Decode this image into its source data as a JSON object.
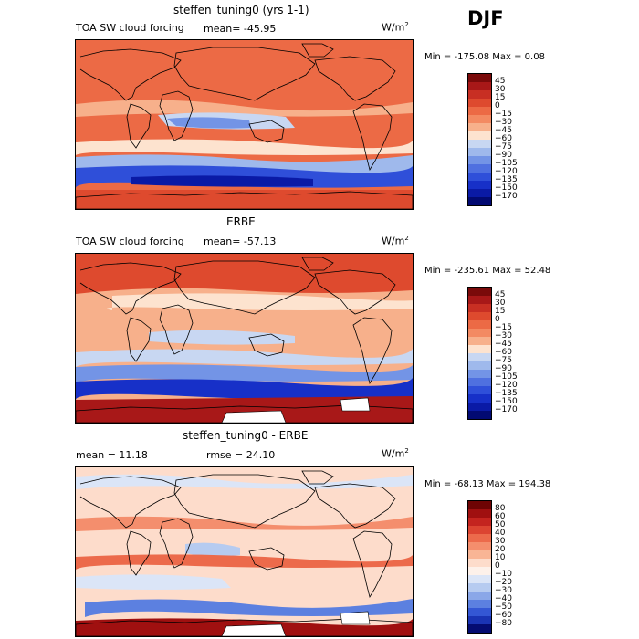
{
  "season": "DJF",
  "unit_label": "W/m",
  "unit_exp": "2",
  "panels": [
    {
      "title": "steffen_tuning0 (yrs 1-1)",
      "variable": "TOA SW cloud forcing",
      "stat_text": "mean= -45.95",
      "stat2_text": "",
      "minmax_text": "Min = -175.08 Max =    0.08",
      "colorbar_ticks": [
        "45",
        "30",
        "15",
        "0",
        "−15",
        "−30",
        "−45",
        "−60",
        "−75",
        "−90",
        "−105",
        "−120",
        "−135",
        "−150",
        "−170"
      ]
    },
    {
      "title": "ERBE",
      "variable": "TOA SW cloud forcing",
      "stat_text": "mean= -57.13",
      "stat2_text": "",
      "minmax_text": "Min = -235.61 Max =  52.48",
      "colorbar_ticks": [
        "45",
        "30",
        "15",
        "0",
        "−15",
        "−30",
        "−45",
        "−60",
        "−75",
        "−90",
        "−105",
        "−120",
        "−135",
        "−150",
        "−170"
      ]
    },
    {
      "title": "steffen_tuning0 - ERBE",
      "variable": "",
      "stat_text": "mean =   11.18",
      "stat2_text": "rmse =   24.10",
      "minmax_text": "Min = -68.13 Max = 194.38",
      "colorbar_ticks": [
        "80",
        "60",
        "50",
        "40",
        "30",
        "20",
        "10",
        "0",
        "−10",
        "−20",
        "−30",
        "−40",
        "−50",
        "−60",
        "−80"
      ]
    }
  ],
  "colors": {
    "abs_scale": [
      "#7a0a0a",
      "#a81818",
      "#c82f23",
      "#de4a2e",
      "#ec6a45",
      "#f38a62",
      "#f7b08b",
      "#fde3cf",
      "#c8d7f2",
      "#9fb9ec",
      "#7394e6",
      "#4f70e0",
      "#2f4fd9",
      "#1730c8",
      "#0a1aa6",
      "#020a72"
    ],
    "diff_scale": [
      "#6e0404",
      "#a01010",
      "#c4241f",
      "#dc4431",
      "#ec6a4b",
      "#f48e6d",
      "#f9b595",
      "#fddccb",
      "#fdf1ea",
      "#dbe5f7",
      "#b6cbf0",
      "#8aa7e8",
      "#5c80e0",
      "#3457d4",
      "#1a34b4",
      "#040c72"
    ]
  },
  "chart_data": [
    {
      "type": "heatmap",
      "title": "steffen_tuning0 (yrs 1-1)",
      "subtitle": "TOA SW cloud forcing",
      "unit": "W/m2",
      "mean": -45.95,
      "min": -175.08,
      "max": 0.08,
      "levels": [
        45,
        30,
        15,
        0,
        -15,
        -30,
        -45,
        -60,
        -75,
        -90,
        -105,
        -120,
        -135,
        -150,
        -170
      ]
    },
    {
      "type": "heatmap",
      "title": "ERBE",
      "subtitle": "TOA SW cloud forcing",
      "unit": "W/m2",
      "mean": -57.13,
      "min": -235.61,
      "max": 52.48,
      "levels": [
        45,
        30,
        15,
        0,
        -15,
        -30,
        -45,
        -60,
        -75,
        -90,
        -105,
        -120,
        -135,
        -150,
        -170
      ]
    },
    {
      "type": "heatmap",
      "title": "steffen_tuning0 - ERBE",
      "unit": "W/m2",
      "mean": 11.18,
      "rmse": 24.1,
      "min": -68.13,
      "max": 194.38,
      "levels": [
        80,
        60,
        50,
        40,
        30,
        20,
        10,
        0,
        -10,
        -20,
        -30,
        -40,
        -50,
        -60,
        -80
      ]
    }
  ]
}
